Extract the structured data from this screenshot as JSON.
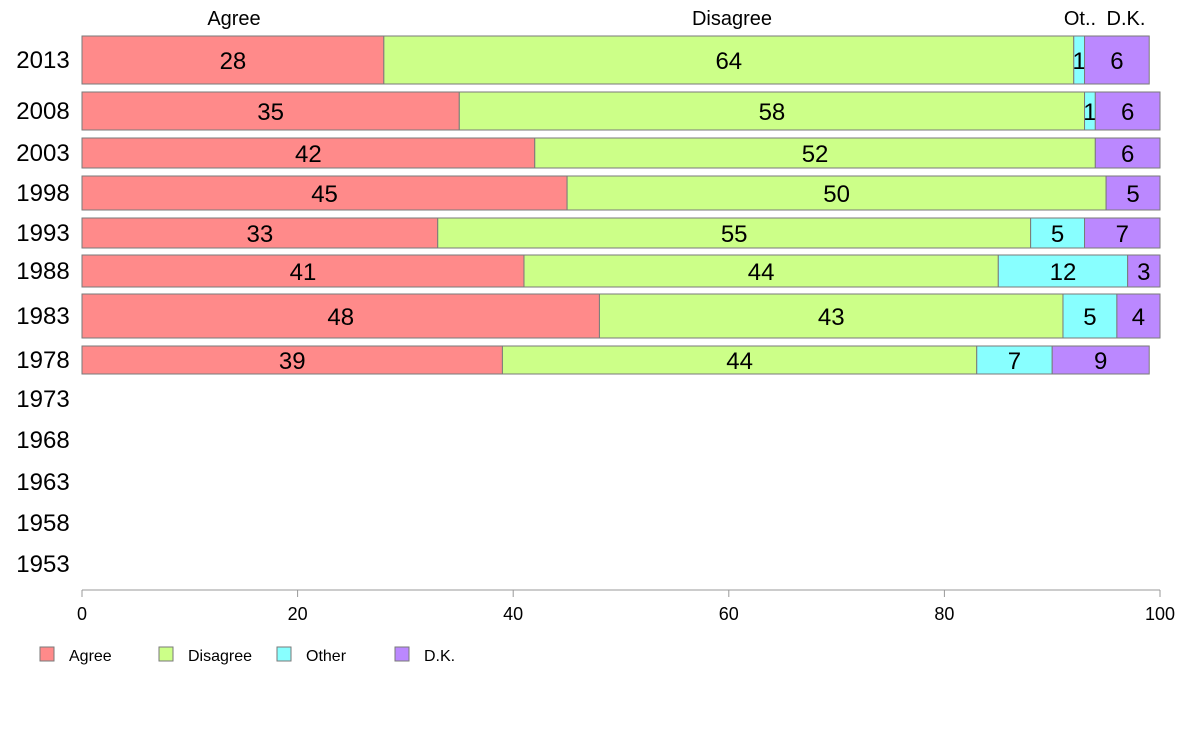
{
  "chart_data": {
    "type": "bar",
    "orientation": "horizontal",
    "stacked": true,
    "categories": [
      "2013",
      "2008",
      "2003",
      "1998",
      "1993",
      "1988",
      "1983",
      "1978",
      "1973",
      "1968",
      "1963",
      "1958",
      "1953"
    ],
    "series": [
      {
        "name": "Agree",
        "color": "#ff8a8a",
        "values": [
          28,
          35,
          42,
          45,
          33,
          41,
          48,
          39,
          null,
          null,
          null,
          null,
          null
        ]
      },
      {
        "name": "Disagree",
        "color": "#ccff88",
        "values": [
          64,
          58,
          52,
          50,
          55,
          44,
          43,
          44,
          null,
          null,
          null,
          null,
          null
        ]
      },
      {
        "name": "Other",
        "color": "#88ffff",
        "values": [
          1,
          1,
          0,
          0,
          5,
          12,
          5,
          7,
          null,
          null,
          null,
          null,
          null
        ]
      },
      {
        "name": "D.K.",
        "color": "#bb88ff",
        "values": [
          6,
          6,
          6,
          5,
          7,
          3,
          4,
          9,
          null,
          null,
          null,
          null,
          null
        ]
      }
    ],
    "data_labels": [
      [
        "28",
        "64",
        "1",
        "6"
      ],
      [
        "35",
        "58",
        "1",
        "6"
      ],
      [
        "42",
        "52",
        "",
        "6"
      ],
      [
        "45",
        "50",
        "",
        "5"
      ],
      [
        "33",
        "55",
        "5",
        "7"
      ],
      [
        "41",
        "44",
        "12",
        "3"
      ],
      [
        "48",
        "43",
        "5",
        "4"
      ],
      [
        "39",
        "44",
        "7",
        "9"
      ],
      [],
      [],
      [],
      [],
      []
    ],
    "top_labels": [
      "Agree",
      "Disagree",
      "Ot..",
      "D.K."
    ],
    "xlim": [
      0,
      100
    ],
    "xticks": [
      "0",
      "20",
      "40",
      "60",
      "80",
      "100"
    ],
    "legend": [
      "Agree",
      "Disagree",
      "Other",
      "D.K."
    ],
    "legend_position": "bottom-left",
    "grid": false
  }
}
